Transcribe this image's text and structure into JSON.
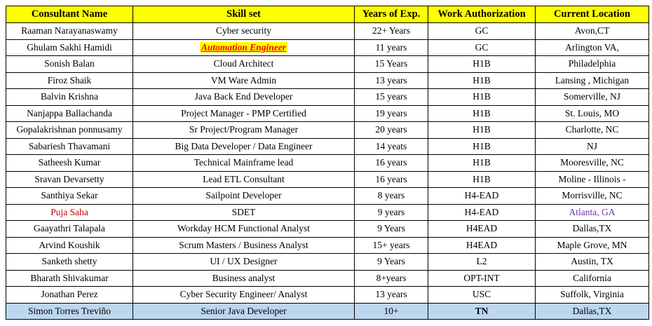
{
  "table": {
    "columns": [
      "Consultant Name",
      "Skill set",
      "Years of Exp.",
      "Work Authorization",
      "Current Location"
    ],
    "rows": [
      {
        "name": "Raaman Narayanaswamy",
        "skill": "Cyber security",
        "exp": "22+ Years",
        "auth": "GC",
        "location": "Avon,CT"
      },
      {
        "name": "Ghulam Sakhi Hamidi",
        "skill": "Automation Engineer",
        "exp": "11 years",
        "auth": "GC",
        "location": "Arlington VA,",
        "skill_style": "highlight-link"
      },
      {
        "name": "Sonish Balan",
        "skill": "Cloud Architect",
        "exp": "15 Years",
        "auth": "H1B",
        "location": "Philadelphia"
      },
      {
        "name": "Firoz Shaik",
        "skill": "VM Ware Admin",
        "exp": "13 years",
        "auth": "H1B",
        "location": "Lansing , Michigan"
      },
      {
        "name": "Balvin Krishna",
        "skill": "Java Back End Developer",
        "exp": "15 years",
        "auth": "H1B",
        "location": "Somerville, NJ"
      },
      {
        "name": "Nanjappa Ballachanda",
        "skill": "Project Manager - PMP Certified",
        "exp": "19 years",
        "auth": "H1B",
        "location": "St. Louis, MO"
      },
      {
        "name": "Gopalakrishnan ponnusamy",
        "skill": "Sr Project/Program Manager",
        "exp": "20 years",
        "auth": "H1B",
        "location": "Charlotte, NC"
      },
      {
        "name": "Sabariesh Thavamani",
        "skill": "Big Data Developer / Data Engineer",
        "exp": "14 yeats",
        "auth": "H1B",
        "location": "NJ"
      },
      {
        "name": "Satheesh Kumar",
        "skill": "Technical Mainframe lead",
        "exp": "16 years",
        "auth": "H1B",
        "location": "Mooresville, NC"
      },
      {
        "name": "Sravan Devarsetty",
        "skill": "Lead ETL Consultant",
        "exp": "16 years",
        "auth": "H1B",
        "location": "Moline - Illinois -"
      },
      {
        "name": "Santhiya Sekar",
        "skill": "Sailpoint Developer",
        "exp": "8 years",
        "auth": "H4-EAD",
        "location": "Morrisville, NC"
      },
      {
        "name": "Puja Saha",
        "skill": "SDET",
        "exp": "9 years",
        "auth": "H4-EAD",
        "location": "Atlanta, GA",
        "name_color": "#C00000",
        "location_color": "#7030A0"
      },
      {
        "name": "Gaayathri Talapala",
        "skill": "Workday HCM Functional Analyst",
        "exp": "9 Years",
        "auth": "H4EAD",
        "location": "Dallas,TX"
      },
      {
        "name": "Arvind Koushik",
        "skill": "Scrum Masters / Business Analyst",
        "exp": "15+ years",
        "auth": "H4EAD",
        "location": "Maple Grove, MN"
      },
      {
        "name": "Sanketh shetty",
        "skill": "UI / UX Designer",
        "exp": "9 Years",
        "auth": "L2",
        "location": "Austin, TX"
      },
      {
        "name": "Bharath Shivakumar",
        "skill": "Business analyst",
        "exp": "8+years",
        "auth": "OPT-INT",
        "location": "California"
      },
      {
        "name": "Jonathan Perez",
        "skill": "Cyber Security Engineer/ Analyst",
        "exp": "13 years",
        "auth": "USC",
        "location": "Suffolk, Virginia"
      },
      {
        "name": "Simon Torres Treviño",
        "skill": "Senior Java Developer",
        "exp": "10+",
        "auth": "TN",
        "location": "Dallas,TX",
        "row_bg": "#BDD7EE",
        "auth_bold": true
      }
    ]
  },
  "colors": {
    "header_bg": "#FFFF00",
    "highlight_bg": "#FFFF00",
    "highlight_text": "#FF0000",
    "highlight_underline": "#007272",
    "special_name_color": "#C00000",
    "special_location_color": "#7030A0",
    "last_row_bg": "#BDD7EE",
    "border": "#000000"
  }
}
